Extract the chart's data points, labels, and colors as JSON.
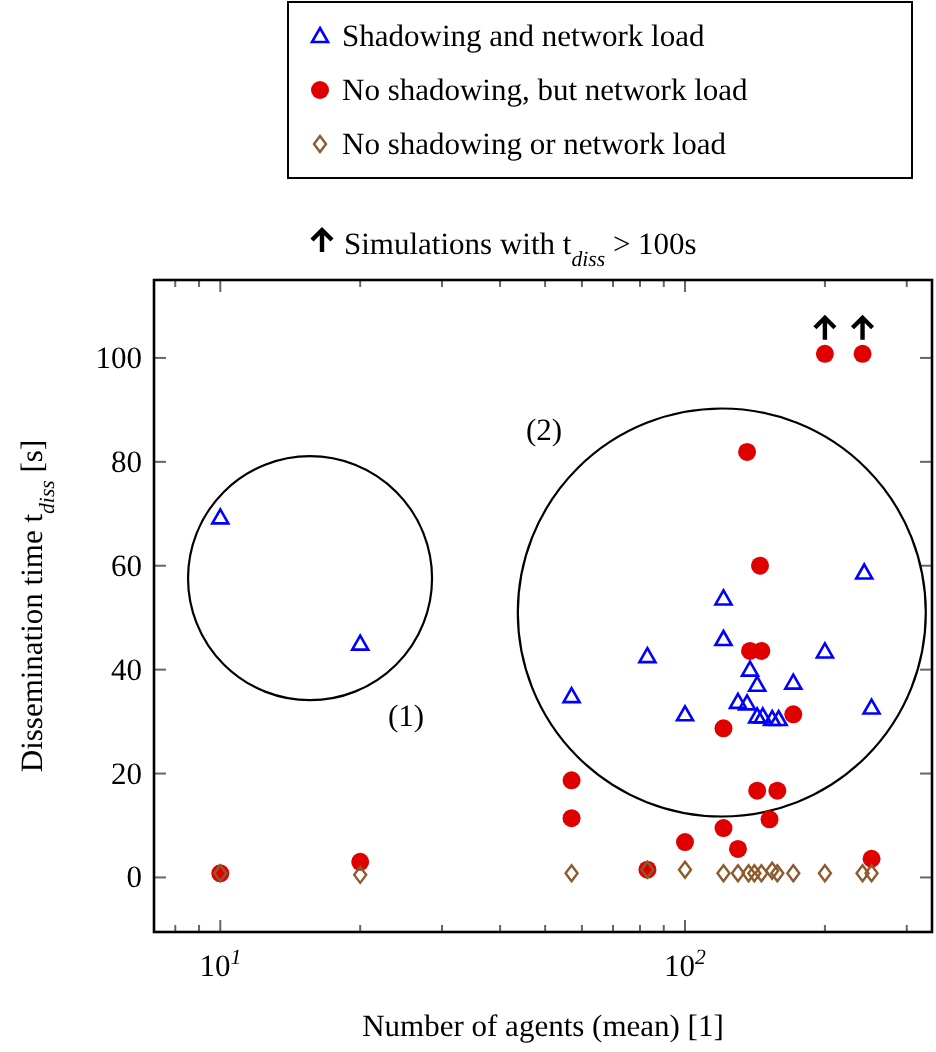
{
  "chart_data": {
    "type": "scatter",
    "xlabel": "Number of agents (mean) [1]",
    "ylabel": "Dissemination time t$_{diss}$ [s]",
    "log": "x",
    "grid": false,
    "legend": "top",
    "xlim": [
      7.2,
      340
    ],
    "xticks": [
      {
        "value": 8,
        "label": null
      },
      {
        "value": 9,
        "label": null
      },
      {
        "value": 10,
        "label": "10$^{1}$"
      },
      {
        "value": 20,
        "label": null
      },
      {
        "value": 30,
        "label": null
      },
      {
        "value": 40,
        "label": null
      },
      {
        "value": 50,
        "label": null
      },
      {
        "value": 60,
        "label": null
      },
      {
        "value": 70,
        "label": null
      },
      {
        "value": 80,
        "label": null
      },
      {
        "value": 90,
        "label": null
      },
      {
        "value": 100,
        "label": "10$^{2}$"
      },
      {
        "value": 200,
        "label": null
      },
      {
        "value": 300,
        "label": null
      }
    ],
    "ylim": [
      -10.5,
      115
    ],
    "yticks": [
      0,
      20,
      40,
      60,
      80,
      100
    ],
    "annotations": [
      "Simulations with t$_{diss}$ > 100s",
      "(1)",
      "(2)"
    ],
    "series": [
      {
        "name": "Shadowing and network load",
        "color": "#0000ff",
        "marker": "triangle",
        "x": [
          10,
          20,
          121,
          243,
          83,
          121,
          200,
          57,
          138,
          143,
          171,
          100,
          130,
          136,
          143,
          147,
          154,
          159,
          252
        ],
        "values": [
          69.3,
          45,
          53.7,
          58.7,
          42.6,
          45.9,
          43.5,
          34.9,
          40,
          37.1,
          37.5,
          31.4,
          33.8,
          33.5,
          31,
          31,
          30.5,
          30.5,
          32.7
        ]
      },
      {
        "name": "No shadowing, but network load",
        "color": "#e00000",
        "marker": "circle",
        "x": [
          10,
          20,
          200,
          241,
          136,
          145,
          138,
          146,
          171,
          121,
          57,
          57,
          143,
          158,
          152,
          100,
          121,
          130,
          83,
          252
        ],
        "values": [
          0.8,
          3,
          100.8,
          100.8,
          81.9,
          60,
          43.6,
          43.6,
          31.4,
          28.7,
          18.7,
          11.4,
          16.7,
          16.7,
          11.2,
          6.8,
          9.5,
          5.5,
          1.5,
          3.6
        ]
      },
      {
        "name": "No shadowing or network load",
        "color": "#8c5a2d",
        "marker": "diamond",
        "x": [
          10,
          20,
          57,
          83,
          100,
          121,
          130,
          137,
          141,
          146,
          154,
          158,
          171,
          200,
          241,
          252
        ],
        "values": [
          0.8,
          0.5,
          0.8,
          1.5,
          1.5,
          0.8,
          0.8,
          0.8,
          0.8,
          0.8,
          1.3,
          0.8,
          0.8,
          0.8,
          0.8,
          0.8
        ]
      }
    ]
  }
}
